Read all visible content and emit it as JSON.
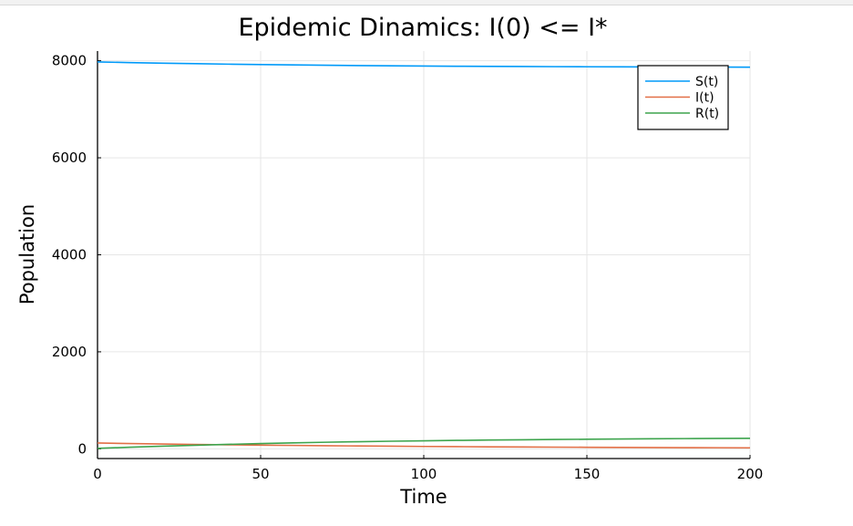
{
  "chart_data": {
    "type": "line",
    "title": "Epidemic Dinamics: I(0) <= I*",
    "xlabel": "Time",
    "ylabel": "Population",
    "xlim": [
      0,
      200
    ],
    "ylim": [
      -200,
      8200
    ],
    "xticks": [
      0,
      50,
      100,
      150,
      200
    ],
    "yticks": [
      0,
      2000,
      4000,
      6000,
      8000
    ],
    "xtick_labels": [
      "0",
      "50",
      "100",
      "150",
      "200"
    ],
    "ytick_labels": [
      "0",
      "2000",
      "4000",
      "6000",
      "8000"
    ],
    "grid": true,
    "legend_position": "top-right",
    "x": [
      0,
      10,
      20,
      30,
      40,
      50,
      60,
      70,
      80,
      90,
      100,
      110,
      120,
      130,
      140,
      150,
      160,
      170,
      180,
      190,
      200
    ],
    "series": [
      {
        "name": "S(t)",
        "color": "#009af9",
        "values": [
          7975,
          7962,
          7950,
          7940,
          7930,
          7921,
          7914,
          7907,
          7901,
          7896,
          7891,
          7887,
          7884,
          7881,
          7878,
          7876,
          7874,
          7872,
          7871,
          7869,
          7868
        ]
      },
      {
        "name": "I(t)",
        "color": "#e26f46",
        "values": [
          120,
          109,
          99,
          91,
          83,
          76,
          70,
          64,
          59,
          54,
          49,
          45,
          41,
          38,
          35,
          32,
          29,
          27,
          25,
          23,
          21
        ]
      },
      {
        "name": "R(t)",
        "color": "#3da44d",
        "values": [
          10,
          33,
          55,
          74,
          92,
          109,
          123,
          136,
          147,
          157,
          166,
          174,
          181,
          187,
          193,
          198,
          203,
          207,
          211,
          214,
          217
        ]
      }
    ]
  }
}
